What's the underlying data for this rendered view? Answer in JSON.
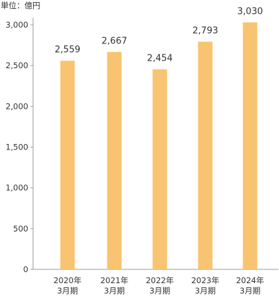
{
  "unit_label": "単位：億円",
  "colors": {
    "bar": "#f8c471",
    "axis": "#999999",
    "text": "#333333",
    "value_text": "#333333"
  },
  "chart_data": {
    "type": "bar",
    "categories": [
      [
        "2020年",
        "3月期"
      ],
      [
        "2021年",
        "3月期"
      ],
      [
        "2022年",
        "3月期"
      ],
      [
        "2023年",
        "3月期"
      ],
      [
        "2024年",
        "3月期"
      ]
    ],
    "values": [
      2559,
      2667,
      2454,
      2793,
      3030
    ],
    "value_labels": [
      "2,559",
      "2,667",
      "2,454",
      "2,793",
      "3,030"
    ],
    "yticks": [
      0,
      500,
      1000,
      1500,
      2000,
      2500,
      3000
    ],
    "ytick_labels": [
      "0",
      "500",
      "1,000",
      "1,500",
      "2,000",
      "2,500",
      "3,000"
    ],
    "ylim": [
      0,
      3000
    ],
    "ylabel": "単位：億円",
    "xlabel": "",
    "title": "",
    "grid": false
  }
}
